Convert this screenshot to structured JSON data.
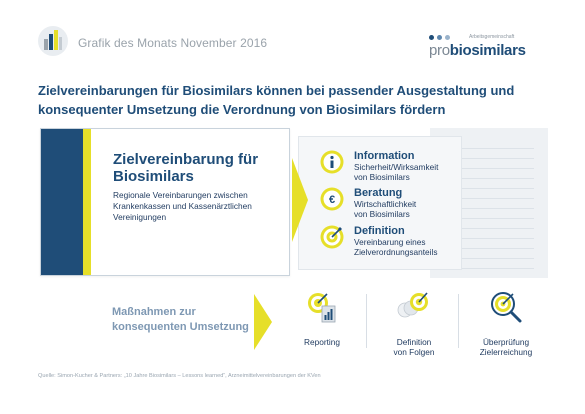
{
  "header": {
    "title": "Grafik des Monats November 2016",
    "logo": {
      "tagline": "Arbeitsgemeinschaft",
      "pro": "pro",
      "name": "biosimilars"
    }
  },
  "headline": "Zielvereinbarungen für Biosimilars können bei passender Ausgestaltung und konsequenter Umsetzung die Verordnung von Biosimilars fördern",
  "card": {
    "title": "Zielvereinbarung für Biosimilars",
    "text": "Regionale Vereinbarungen zwischen Krankenkassen und Kassenärztlichen Vereinigungen"
  },
  "items": [
    {
      "title": "Information",
      "line1": "Sicherheit/Wirksamkeit",
      "line2": "von Biosimilars",
      "icon": "info-icon"
    },
    {
      "title": "Beratung",
      "line1": "Wirtschaftlichkeit",
      "line2": "von Biosimilars",
      "icon": "euro-icon"
    },
    {
      "title": "Definition",
      "line1": "Vereinbarung eines",
      "line2": "Zielverordnungsanteils",
      "icon": "target-icon"
    }
  ],
  "measures": {
    "label_line1": "Maßnahmen zur",
    "label_line2": "konsequenten Umsetzung",
    "items": [
      {
        "line1": "Reporting",
        "line2": "",
        "icon": "target-report-icon"
      },
      {
        "line1": "Definition",
        "line2": "von Folgen",
        "icon": "target-consequences-icon"
      },
      {
        "line1": "Überprüfung",
        "line2": "Zielerreichung",
        "icon": "target-magnifier-icon"
      }
    ]
  },
  "source": "Quelle:  Simon-Kucher & Partners: „10 Jahre Biosimilars – Lessons learned“, Arzneimittelvereinbarungen der KVen",
  "colors": {
    "navy": "#1f4d78",
    "yellow": "#e6df29",
    "grey": "#9aa3ab",
    "light_blue": "#7e98b3"
  }
}
